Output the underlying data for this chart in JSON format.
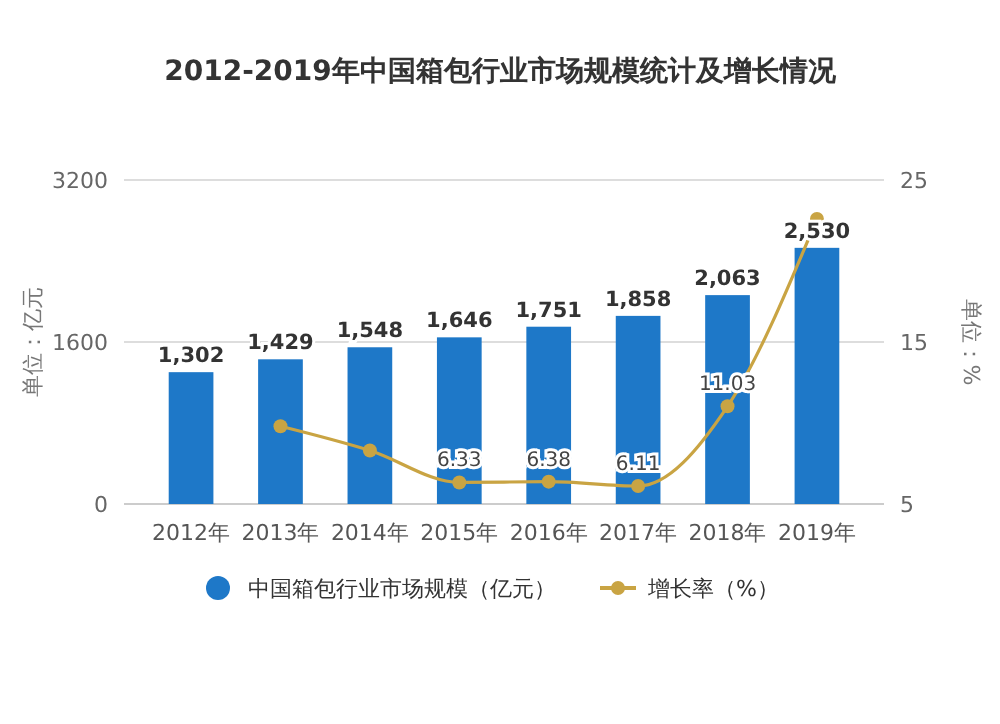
{
  "chart_data": {
    "type": "bar",
    "title": "2012-2019年中国箱包行业市场规模统计及增长情况",
    "ylabel": "单位：亿元",
    "y2label": "单位：%",
    "categories": [
      "2012年",
      "2013年",
      "2014年",
      "2015年",
      "2016年",
      "2017年",
      "2018年",
      "2019年"
    ],
    "series": [
      {
        "name": "中国箱包行业市场规模（亿元）",
        "color": "#1e78c8",
        "values": [
          1302,
          1429,
          1548,
          1646,
          1751,
          1858,
          2063,
          2530
        ],
        "value_labels": [
          "1,302",
          "1,429",
          "1,548",
          "1,646",
          "1,751",
          "1,858",
          "2,063",
          "2,530"
        ]
      },
      {
        "name": "增长率（%）",
        "type": "line",
        "axis": "y2",
        "color": "#c9a443",
        "values": [
          null,
          9.8,
          8.3,
          6.33,
          6.38,
          6.11,
          11.03,
          22.6
        ],
        "value_labels": [
          null,
          null,
          null,
          "6.33",
          "6.38",
          "6.11",
          "11.03",
          null
        ]
      }
    ],
    "ylim": [
      0,
      3200
    ],
    "yticks": [
      0,
      1600,
      3200
    ],
    "y2lim": [
      5,
      25
    ],
    "y2ticks": [
      5,
      15,
      25
    ],
    "grid": "y",
    "legend": "bottom",
    "marker": "circle"
  }
}
